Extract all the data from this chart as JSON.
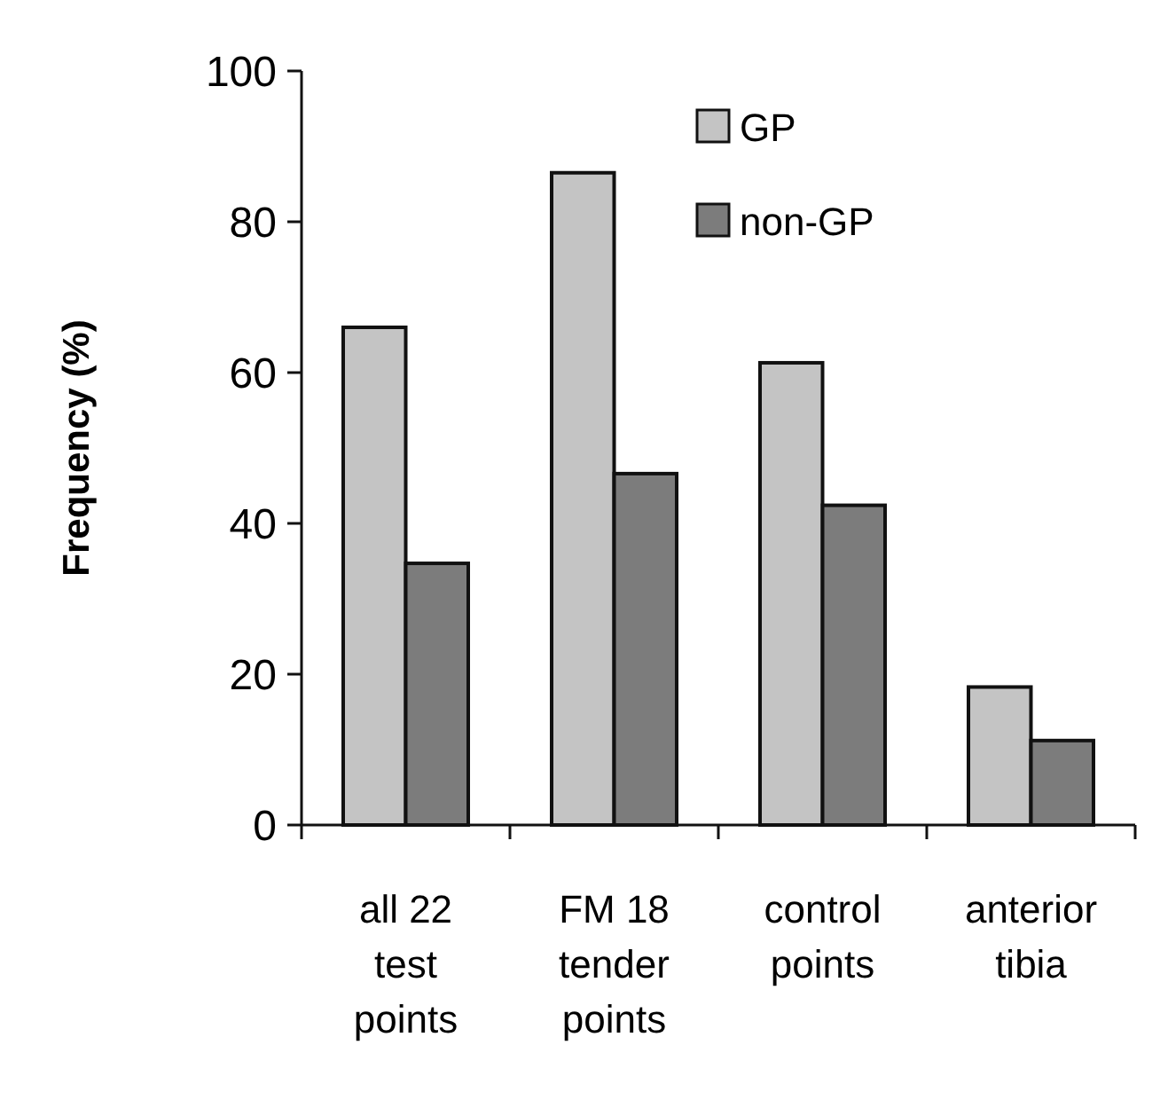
{
  "chart_data": {
    "type": "bar",
    "ylabel": "Frequency (%)",
    "categories": [
      "all 22 test points",
      "FM 18 tender points",
      "control points",
      "anterior tibia"
    ],
    "series": [
      {
        "name": "GP",
        "color": "#c4c4c4",
        "values": [
          66,
          86.5,
          61.3,
          18.3
        ]
      },
      {
        "name": "non-GP",
        "color": "#7c7c7c",
        "values": [
          34.7,
          46.6,
          42.4,
          11.2
        ]
      }
    ],
    "ylim": [
      0,
      100
    ],
    "yticks": [
      0,
      20,
      40,
      60,
      80,
      100
    ],
    "legend": "top right"
  }
}
